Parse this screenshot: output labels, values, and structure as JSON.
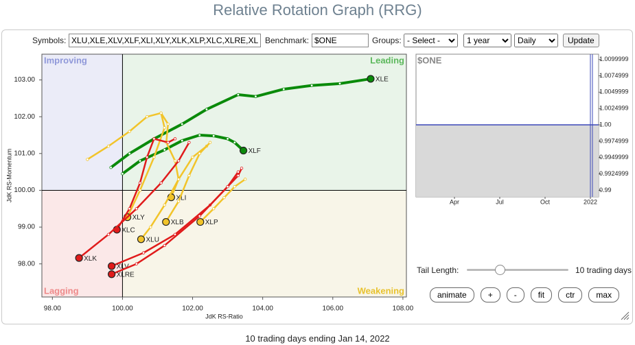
{
  "header": {
    "title": "Relative Rotation Graph (RRG)"
  },
  "controls": {
    "symbols_label": "Symbols:",
    "symbols_value": "XLU,XLE,XLV,XLF,XLI,XLY,XLK,XLP,XLC,XLRE,XL",
    "benchmark_label": "Benchmark:",
    "benchmark_value": "$ONE",
    "groups_label": "Groups:",
    "groups_value": "- Select -",
    "period": "1 year",
    "frequency": "Daily",
    "update": "Update",
    "tail_label": "Tail Length:",
    "tail_value": "10 trading days",
    "buttons": [
      "animate",
      "+",
      "-",
      "fit",
      "ctr",
      "max"
    ]
  },
  "chart_data": [
    {
      "type": "rrg",
      "x_label": "JdK RS-Ratio",
      "y_label": "JdK RS-Momentum",
      "xlim": [
        97.7,
        108.1
      ],
      "ylim": [
        97.1,
        103.7
      ],
      "xticks": [
        {
          "value": 98,
          "label": "98.00"
        },
        {
          "value": 100,
          "label": "100.00"
        },
        {
          "value": 102,
          "label": "102.00"
        },
        {
          "value": 104,
          "label": "104.00"
        },
        {
          "value": 106,
          "label": "106.00"
        },
        {
          "value": 108,
          "label": "108.00"
        }
      ],
      "yticks": [
        {
          "value": 98,
          "label": "98.00"
        },
        {
          "value": 99,
          "label": "99.00"
        },
        {
          "value": 100,
          "label": "100.00"
        },
        {
          "value": 101,
          "label": "101.00"
        },
        {
          "value": 102,
          "label": "102.00"
        },
        {
          "value": 103,
          "label": "103.00"
        }
      ],
      "quadrant_center": {
        "x": 100,
        "y": 100
      },
      "quadrants": [
        {
          "label": "Improving",
          "corner": "top-left",
          "color": "#8f98d9",
          "fill": "#ebecf8"
        },
        {
          "label": "Leading",
          "corner": "top-right",
          "color": "#5cb85c",
          "fill": "#e9f4e9"
        },
        {
          "label": "Lagging",
          "corner": "bottom-left",
          "color": "#ee8a8a",
          "fill": "#fbe8e8"
        },
        {
          "label": "Weakening",
          "corner": "bottom-right",
          "color": "#e8c22e",
          "fill": "#f8f5e8"
        }
      ],
      "series": [
        {
          "name": "XLE",
          "color": "#0a8a0a",
          "x": [
            99.67,
            100.2,
            100.9,
            101.7,
            102.4,
            103.3,
            103.8,
            104.6,
            105.4,
            106.2,
            107.08
          ],
          "y": [
            100.62,
            101.0,
            101.4,
            101.8,
            102.2,
            102.6,
            102.55,
            102.75,
            102.85,
            102.9,
            103.03
          ]
        },
        {
          "name": "XLF",
          "color": "#0a8a0a",
          "x": [
            100.0,
            100.5,
            101.2,
            101.7,
            102.2,
            102.6,
            103.0,
            103.2,
            103.45
          ],
          "y": [
            100.45,
            100.8,
            101.1,
            101.35,
            101.5,
            101.48,
            101.4,
            101.3,
            101.08
          ]
        },
        {
          "name": "XLI",
          "color": "#f2c42a",
          "x": [
            101.1,
            101.3,
            101.25,
            101.5,
            101.6,
            101.39
          ],
          "y": [
            102.1,
            101.8,
            101.3,
            100.8,
            100.3,
            99.81
          ]
        },
        {
          "name": "XLY",
          "color": "#f2c42a",
          "x": [
            99.0,
            99.6,
            100.2,
            100.7,
            101.1,
            101.2,
            100.9,
            100.5,
            100.14
          ],
          "y": [
            100.84,
            101.2,
            101.6,
            102.0,
            102.1,
            101.7,
            100.9,
            100.0,
            99.27
          ]
        },
        {
          "name": "XLU",
          "color": "#f2c42a",
          "x": [
            102.4,
            102.0,
            101.6,
            101.2,
            100.8,
            100.53
          ],
          "y": [
            101.2,
            100.9,
            100.3,
            99.6,
            99.0,
            98.67
          ]
        },
        {
          "name": "XLB",
          "color": "#f2c42a",
          "x": [
            102.5,
            102.2,
            101.9,
            101.6,
            101.24
          ],
          "y": [
            101.3,
            101.0,
            100.4,
            99.7,
            99.14
          ]
        },
        {
          "name": "XLP",
          "color": "#f2c42a",
          "x": [
            103.5,
            103.2,
            102.9,
            102.6,
            102.22
          ],
          "y": [
            100.3,
            100.1,
            99.8,
            99.5,
            99.14
          ]
        },
        {
          "name": "XLC",
          "color": "#e01b1b",
          "x": [
            101.5,
            101.3,
            100.9,
            100.7,
            100.5,
            100.2,
            99.84
          ],
          "y": [
            101.4,
            101.3,
            101.4,
            100.9,
            100.2,
            99.5,
            98.93
          ]
        },
        {
          "name": "XLK",
          "color": "#e01b1b",
          "x": [
            101.9,
            101.6,
            101.1,
            100.4,
            99.6,
            98.76
          ],
          "y": [
            101.3,
            100.8,
            100.2,
            99.5,
            98.8,
            98.16
          ]
        },
        {
          "name": "XLV",
          "color": "#e01b1b",
          "x": [
            103.4,
            103.3,
            102.5,
            101.5,
            100.6,
            99.69
          ],
          "y": [
            100.6,
            100.4,
            99.6,
            98.8,
            98.3,
            97.94
          ]
        },
        {
          "name": "XLRE",
          "color": "#e01b1b",
          "x": [
            103.3,
            103.0,
            102.2,
            101.2,
            100.4,
            99.69
          ],
          "y": [
            100.5,
            100.1,
            99.3,
            98.5,
            98.0,
            97.72
          ]
        }
      ]
    },
    {
      "type": "area",
      "title": "$ONE",
      "color": "#3a47b8",
      "categories": [
        "Apr",
        "Jul",
        "Oct",
        "2022"
      ],
      "values": [
        1,
        1,
        1,
        1
      ],
      "ylim": [
        0.989,
        1.0108
      ],
      "yticks": [
        1.0099999,
        1.0074999,
        1.0049999,
        1.0024999,
        {
          "value": 1,
          "label": "1.00"
        },
        0.9974999,
        0.9949999,
        0.9924999,
        {
          "value": 0.99,
          "label": "0.99"
        }
      ]
    }
  ],
  "footer": "10 trading days ending Jan 14, 2022"
}
